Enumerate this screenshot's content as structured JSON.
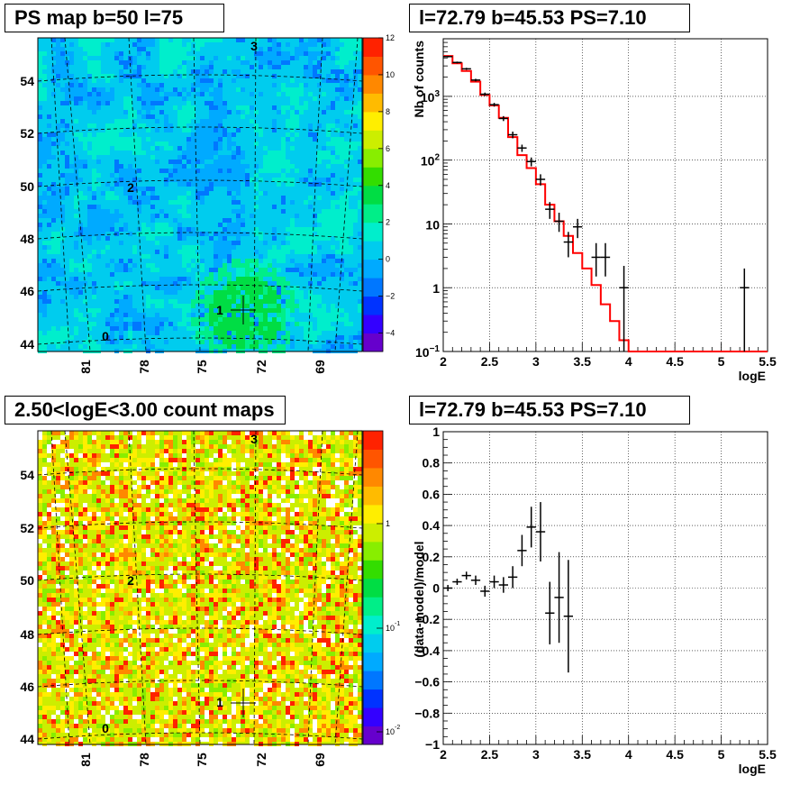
{
  "chart_data": [
    {
      "type": "heatmap",
      "title": "PS map b=50 l=75",
      "x_ticks": [
        "81",
        "78",
        "75",
        "72",
        "69"
      ],
      "y_ticks": [
        "44",
        "46",
        "48",
        "50",
        "52",
        "54"
      ],
      "colorbar_ticks": [
        "12",
        "10",
        "8",
        "6",
        "4",
        "2",
        "0",
        "−2",
        "−4"
      ],
      "colorbar_range": [
        -5,
        12
      ],
      "colorbar_colors": [
        "#6600cc",
        "#3300ff",
        "#0033ff",
        "#0077ff",
        "#00aaff",
        "#00ccee",
        "#00eecc",
        "#00ee88",
        "#00dd44",
        "#33dd00",
        "#88ee00",
        "#ccee00",
        "#ffee00",
        "#ffbb00",
        "#ff8800",
        "#ff5500",
        "#ff2200"
      ],
      "markers": [
        {
          "label": "0",
          "x": 81.9,
          "y": 44.0
        },
        {
          "label": "1",
          "x": 72.79,
          "y": 45.53
        },
        {
          "label": "2",
          "x": 78.9,
          "y": 50.0
        },
        {
          "label": "3",
          "x": 72.4,
          "y": 55.2
        }
      ],
      "grid": true
    },
    {
      "type": "line",
      "title": "l=72.79 b=45.53 PS=7.10",
      "xlabel": "logE",
      "ylabel": "Nb of counts",
      "ylog": true,
      "xlim": [
        2,
        5.5
      ],
      "ylim": [
        0.1,
        8000
      ],
      "x_ticks": [
        "2",
        "2.5",
        "3",
        "3.5",
        "4",
        "4.5",
        "5",
        "5.5"
      ],
      "y_ticks": [
        {
          "value": 1000,
          "base": "10",
          "exp": "3"
        },
        {
          "value": 100,
          "base": "10",
          "exp": "2"
        },
        {
          "value": 10,
          "base": "10",
          "exp": ""
        },
        {
          "value": 1,
          "base": "1",
          "exp": ""
        },
        {
          "value": 0.1,
          "base": "10",
          "exp": "−1"
        }
      ],
      "grid": true,
      "series": [
        {
          "color": "#ff0000",
          "step_edges": [
            2.0,
            2.1,
            2.2,
            2.3,
            2.4,
            2.5,
            2.6,
            2.7,
            2.8,
            2.9,
            3.0,
            3.1,
            3.2,
            3.3,
            3.4,
            3.5,
            3.6,
            3.7,
            3.8,
            3.9,
            4.0,
            5.5
          ],
          "step_values": [
            4300,
            3300,
            2500,
            1700,
            1050,
            720,
            460,
            230,
            120,
            75,
            42,
            20,
            11,
            6.5,
            3.5,
            2.0,
            1.1,
            0.55,
            0.3,
            0.15,
            0.1
          ]
        },
        {
          "color": "#000000",
          "points": [
            {
              "x": 2.05,
              "y": 4200,
              "lo": 4080,
              "hi": 4320
            },
            {
              "x": 2.15,
              "y": 3400,
              "lo": 3290,
              "hi": 3510
            },
            {
              "x": 2.25,
              "y": 2700,
              "lo": 2600,
              "hi": 2800
            },
            {
              "x": 2.35,
              "y": 1800,
              "lo": 1715,
              "hi": 1885
            },
            {
              "x": 2.45,
              "y": 1080,
              "lo": 1015,
              "hi": 1145
            },
            {
              "x": 2.55,
              "y": 740,
              "lo": 690,
              "hi": 790
            },
            {
              "x": 2.65,
              "y": 450,
              "lo": 410,
              "hi": 490
            },
            {
              "x": 2.75,
              "y": 250,
              "lo": 220,
              "hi": 280
            },
            {
              "x": 2.85,
              "y": 155,
              "lo": 135,
              "hi": 175
            },
            {
              "x": 2.95,
              "y": 95,
              "lo": 80,
              "hi": 110
            },
            {
              "x": 3.05,
              "y": 50,
              "lo": 40,
              "hi": 60
            },
            {
              "x": 3.15,
              "y": 17,
              "lo": 12,
              "hi": 22
            },
            {
              "x": 3.25,
              "y": 11,
              "lo": 7.5,
              "hi": 15
            },
            {
              "x": 3.35,
              "y": 5.2,
              "lo": 3,
              "hi": 7.5
            },
            {
              "x": 3.45,
              "y": 9,
              "lo": 6,
              "hi": 12
            },
            {
              "x": 3.65,
              "y": 3,
              "lo": 1.5,
              "hi": 5
            },
            {
              "x": 3.75,
              "y": 3,
              "lo": 1.5,
              "hi": 5
            },
            {
              "x": 3.95,
              "y": 1,
              "lo": 0.1,
              "hi": 2.2
            },
            {
              "x": 5.25,
              "y": 1,
              "lo": 0.1,
              "hi": 2.0
            }
          ]
        }
      ]
    },
    {
      "type": "heatmap",
      "title": "2.50<logE<3.00 count maps",
      "x_ticks": [
        "81",
        "78",
        "75",
        "72",
        "69"
      ],
      "y_ticks": [
        "44",
        "46",
        "48",
        "50",
        "52",
        "54"
      ],
      "colorbar_ticks": [
        {
          "base": "1",
          "exp": ""
        },
        {
          "base": "10",
          "exp": "-1"
        },
        {
          "base": "10",
          "exp": "-2"
        }
      ],
      "colorbar_colors": [
        "#6600cc",
        "#3300ff",
        "#0033ff",
        "#0077ff",
        "#00aaff",
        "#00ccee",
        "#00eecc",
        "#00ee88",
        "#00dd44",
        "#33dd00",
        "#88ee00",
        "#ccee00",
        "#ffee00",
        "#ffbb00",
        "#ff8800",
        "#ff5500",
        "#ff2200"
      ],
      "markers": [
        {
          "label": "0",
          "x": 81.9,
          "y": 44.0
        },
        {
          "label": "1",
          "x": 72.79,
          "y": 45.53
        },
        {
          "label": "2",
          "x": 78.9,
          "y": 50.0
        },
        {
          "label": "3",
          "x": 72.4,
          "y": 55.2
        }
      ],
      "grid": true
    },
    {
      "type": "scatter",
      "title": "l=72.79 b=45.53 PS=7.10",
      "xlabel": "logE",
      "ylabel": "(data-model)/model",
      "xlim": [
        2,
        5.5
      ],
      "ylim": [
        -1,
        1
      ],
      "x_ticks": [
        "2",
        "2.5",
        "3",
        "3.5",
        "4",
        "4.5",
        "5",
        "5.5"
      ],
      "y_ticks": [
        "1",
        "0.8",
        "0.6",
        "0.4",
        "0.2",
        "0",
        "−0.2",
        "−0.4",
        "−0.6",
        "−0.8",
        "−1"
      ],
      "grid": true,
      "points": [
        {
          "x": 2.05,
          "y": 0.0,
          "err": 0.02
        },
        {
          "x": 2.15,
          "y": 0.04,
          "err": 0.02
        },
        {
          "x": 2.25,
          "y": 0.08,
          "err": 0.025
        },
        {
          "x": 2.35,
          "y": 0.05,
          "err": 0.03
        },
        {
          "x": 2.45,
          "y": -0.02,
          "err": 0.035
        },
        {
          "x": 2.55,
          "y": 0.04,
          "err": 0.04
        },
        {
          "x": 2.65,
          "y": 0.02,
          "err": 0.05
        },
        {
          "x": 2.75,
          "y": 0.07,
          "err": 0.07
        },
        {
          "x": 2.85,
          "y": 0.24,
          "err": 0.1
        },
        {
          "x": 2.95,
          "y": 0.39,
          "err": 0.13
        },
        {
          "x": 3.05,
          "y": 0.36,
          "err": 0.19
        },
        {
          "x": 3.15,
          "y": -0.16,
          "err": 0.2
        },
        {
          "x": 3.25,
          "y": -0.06,
          "err": 0.29
        },
        {
          "x": 3.35,
          "y": -0.18,
          "err": 0.36
        }
      ]
    }
  ]
}
